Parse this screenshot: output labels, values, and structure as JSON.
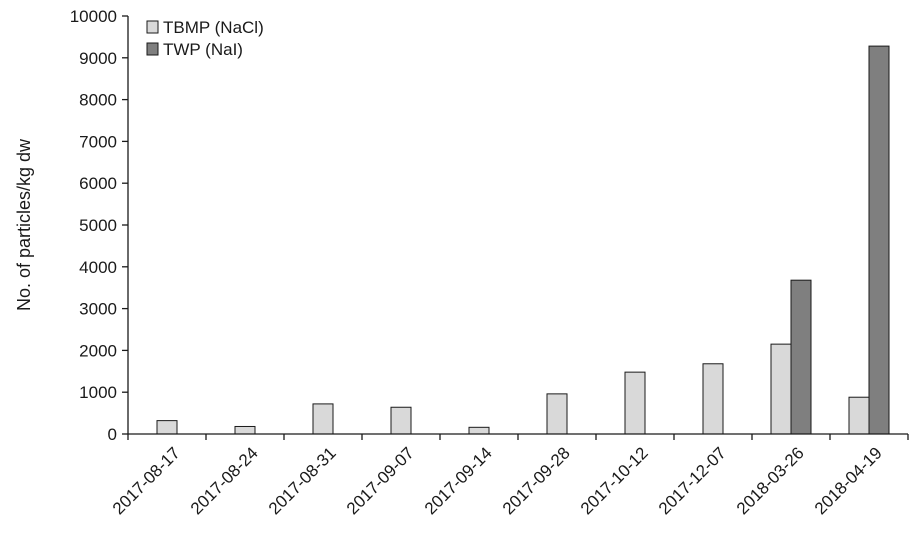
{
  "chart_data": {
    "type": "bar",
    "title": "",
    "xlabel": "",
    "ylabel": "No. of particles/kg dw",
    "ylim": [
      0,
      10000
    ],
    "yticks": [
      0,
      1000,
      2000,
      3000,
      4000,
      5000,
      6000,
      7000,
      8000,
      9000,
      10000
    ],
    "grid": false,
    "legend_position": "top-left",
    "categories": [
      "2017-08-17",
      "2017-08-24",
      "2017-08-31",
      "2017-09-07",
      "2017-09-14",
      "2017-09-28",
      "2017-10-12",
      "2017-12-07",
      "2018-03-26",
      "2018-04-19"
    ],
    "series": [
      {
        "name": "TBMP (NaCl)",
        "color": "#d9d9d9",
        "values": [
          320,
          180,
          720,
          640,
          160,
          960,
          1480,
          1680,
          2150,
          880
        ]
      },
      {
        "name": "TWP (NaI)",
        "color": "#7f7f7f",
        "values": [
          null,
          null,
          null,
          null,
          null,
          null,
          null,
          null,
          3680,
          9280
        ]
      }
    ]
  }
}
